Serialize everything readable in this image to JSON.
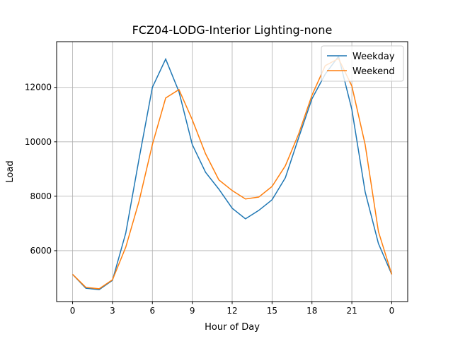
{
  "chart_data": {
    "type": "line",
    "title": "FCZ04-LODG-Interior Lighting-none",
    "x_label": "Hour of Day",
    "y_label": "Load",
    "x": [
      0,
      1,
      2,
      3,
      4,
      5,
      6,
      7,
      8,
      9,
      10,
      11,
      12,
      13,
      14,
      15,
      16,
      17,
      18,
      19,
      20,
      21,
      22,
      23,
      24
    ],
    "series": [
      {
        "name": "Weekday",
        "color": "#1f77b4",
        "values": [
          5130,
          4620,
          4570,
          4910,
          6650,
          9380,
          12000,
          13040,
          11840,
          9900,
          8880,
          8260,
          7560,
          7170,
          7480,
          7870,
          8680,
          10150,
          11580,
          12490,
          13140,
          11190,
          8160,
          6260,
          5130
        ]
      },
      {
        "name": "Weekend",
        "color": "#ff7f0e",
        "values": [
          5130,
          4650,
          4600,
          4930,
          6130,
          7820,
          9900,
          11610,
          11920,
          10810,
          9560,
          8600,
          8210,
          7900,
          7970,
          8360,
          9120,
          10290,
          11710,
          12800,
          13060,
          12050,
          9900,
          6700,
          5130
        ]
      }
    ],
    "xlim": [
      -1.2,
      25.2
    ],
    "ylim": [
      4130,
      13680
    ],
    "xticks": [
      0,
      3,
      6,
      9,
      12,
      15,
      18,
      21,
      {
        "value": 24,
        "label": "0"
      }
    ],
    "yticks": [
      6000,
      8000,
      10000,
      12000
    ],
    "grid": true,
    "legend": "upper-right"
  }
}
